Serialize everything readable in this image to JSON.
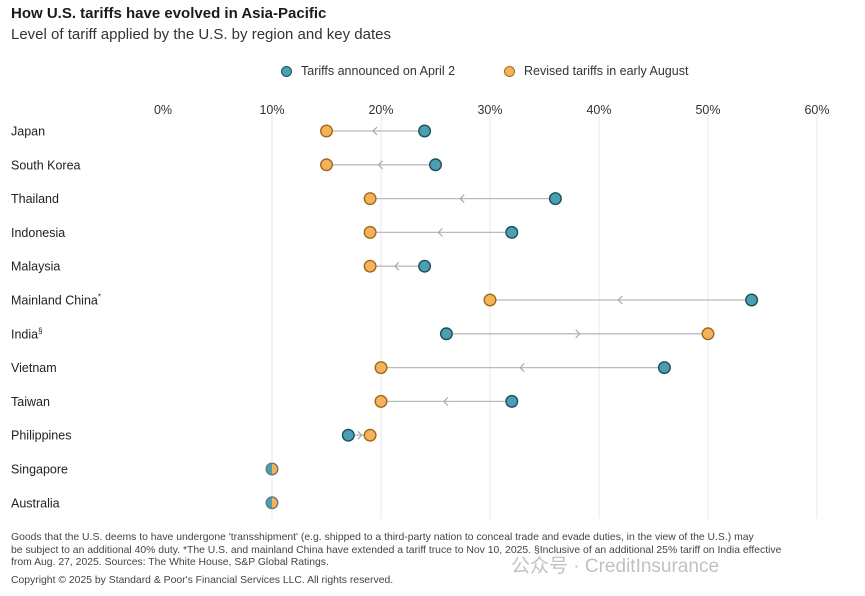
{
  "chart_data": {
    "type": "dumbbell",
    "title": "How U.S. tariffs have evolved in Asia-Pacific",
    "subtitle": "Level of tariff applied by the U.S. by region and key dates",
    "x_tick_labels": [
      "0%",
      "10%",
      "20%",
      "30%",
      "40%",
      "50%",
      "60%"
    ],
    "xlim": [
      0,
      60
    ],
    "legend": {
      "placement": "top",
      "entries": [
        {
          "name": "Tariffs announced on April 2",
          "color": "#4a9fb0"
        },
        {
          "name": "Revised tariffs in early August",
          "color": "#f6b25a"
        }
      ]
    },
    "categories": [
      "Japan",
      "South Korea",
      "Thailand",
      "Indonesia",
      "Malaysia",
      "Mainland China",
      "India",
      "Vietnam",
      "Taiwan",
      "Philippines",
      "Singapore",
      "Australia"
    ],
    "category_marks": [
      "",
      "",
      "",
      "",
      "",
      "*",
      "§",
      "",
      "",
      "",
      "",
      ""
    ],
    "series": [
      {
        "name": "Tariffs announced on April 2",
        "values": [
          24,
          25,
          36,
          32,
          24,
          54,
          26,
          46,
          32,
          17,
          10,
          10
        ]
      },
      {
        "name": "Revised tariffs in early August",
        "values": [
          15,
          15,
          19,
          19,
          19,
          30,
          50,
          20,
          20,
          19,
          10,
          10
        ]
      }
    ],
    "grid": true
  },
  "footnote": {
    "line1": "Goods that the U.S. deems to have undergone 'transshipment' (e.g. shipped to a third-party nation to conceal trade and evade duties, in the view of the U.S.) may",
    "line2": "be subject to an additional 40% duty. *The U.S. and mainland China have extended a tariff truce to Nov 10, 2025. §Inclusive of an additional 25% tariff on India effective",
    "line3": "from Aug. 27, 2025. Sources: The White House, S&P Global Ratings."
  },
  "copyright": "Copyright © 2025 by Standard & Poor's Financial Services LLC. All rights reserved.",
  "watermark": "公众号 · CreditInsurance",
  "colors": {
    "april": "#4a9fb0",
    "april_stroke": "#1f4f5e",
    "august": "#f6b25a",
    "august_stroke": "#a06a1e",
    "connector": "#bbbbbb",
    "grid": "#e8e8e8"
  }
}
